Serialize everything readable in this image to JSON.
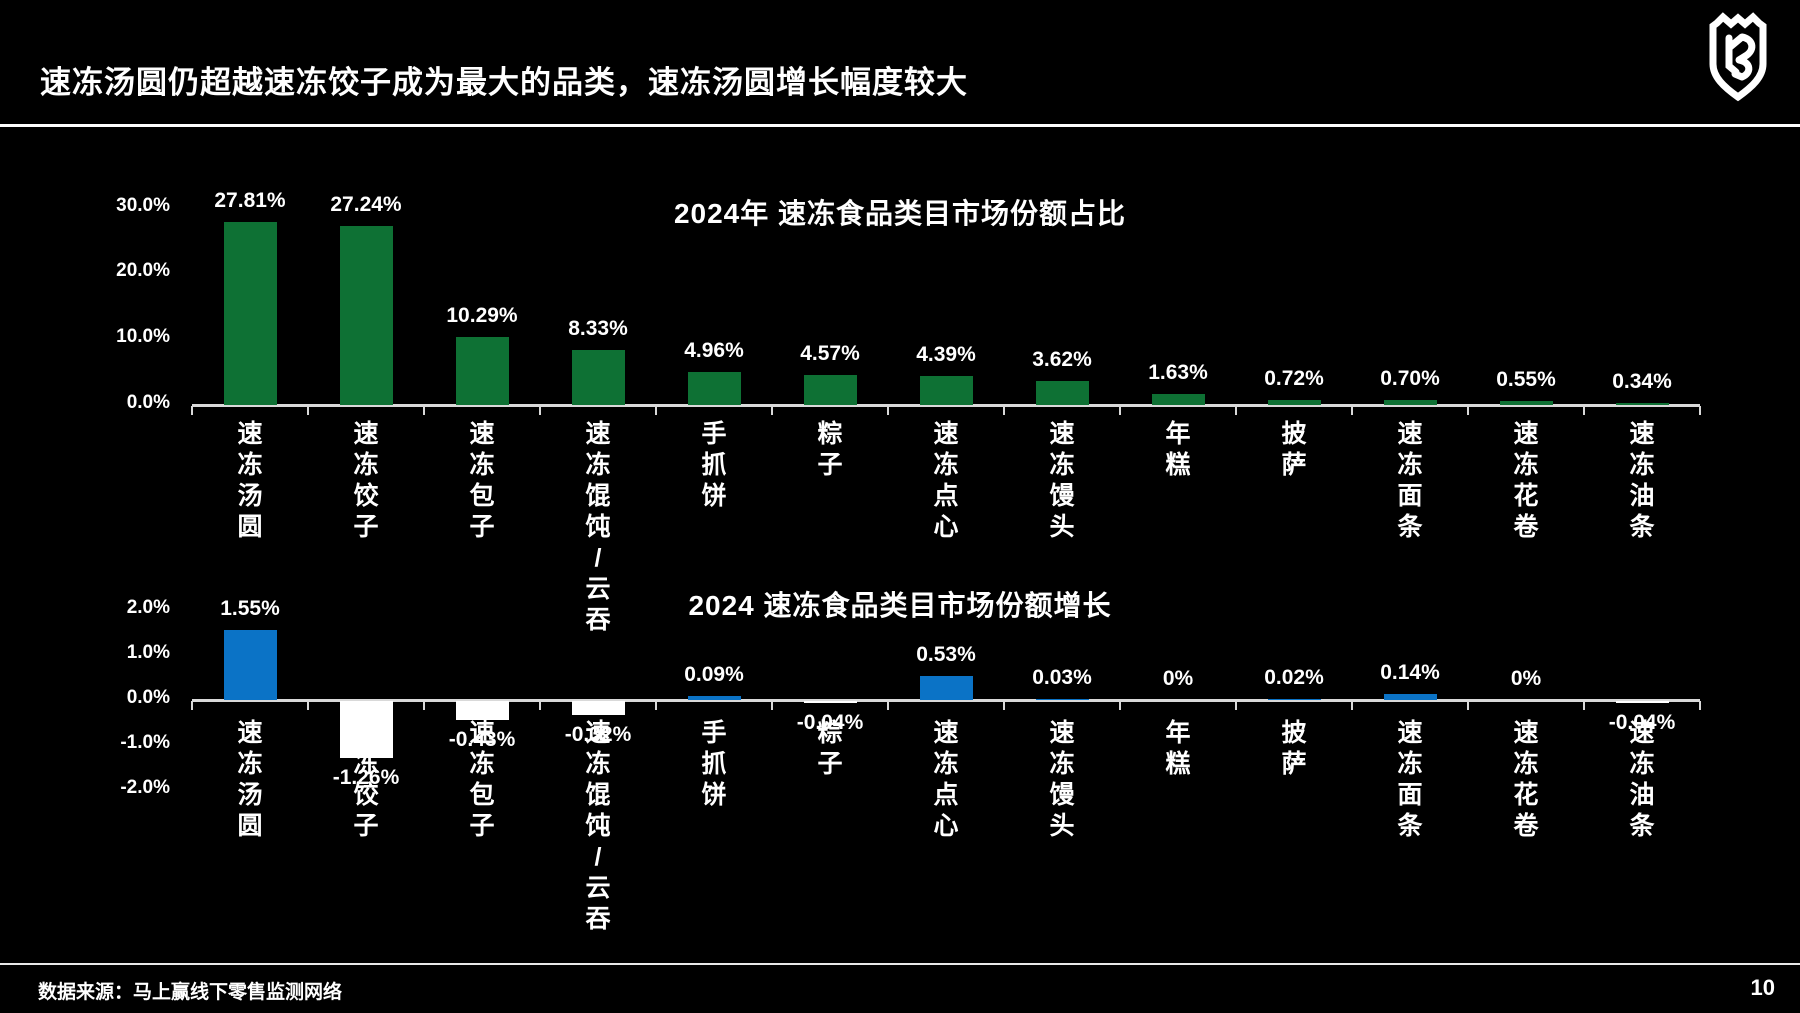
{
  "slide": {
    "title": "速冻汤圆仍超越速冻饺子成为最大的品类，速冻汤圆增长幅度较大",
    "logo_icon": "shield-crown-logo",
    "source": "数据来源：马上赢线下零售监测网络",
    "page_number": "10"
  },
  "colors": {
    "background": "#000000",
    "bar_green": "#0E7134",
    "bar_blue": "#0B73C6",
    "bar_white": "#FFFFFF",
    "axis": "#D9D9D9",
    "text": "#FFFFFF"
  },
  "chart_data": [
    {
      "type": "bar",
      "title": "2024年 速冻食品类目市场份额占比",
      "categories": [
        "速冻汤圆",
        "速冻饺子",
        "速冻包子",
        "速冻馄饨/云吞",
        "手抓饼",
        "粽子",
        "速冻点心",
        "速冻馒头",
        "年糕",
        "披萨",
        "速冻面条",
        "速冻花卷",
        "速冻油条"
      ],
      "values": [
        27.81,
        27.24,
        10.29,
        8.33,
        4.96,
        4.57,
        4.39,
        3.62,
        1.63,
        0.72,
        0.7,
        0.55,
        0.34
      ],
      "value_labels": [
        "27.81%",
        "27.24%",
        "10.29%",
        "8.33%",
        "4.96%",
        "4.57%",
        "4.39%",
        "3.62%",
        "1.63%",
        "0.72%",
        "0.70%",
        "0.55%",
        "0.34%"
      ],
      "bar_color": "#0E7134",
      "yticks": [
        {
          "label": "30.0%",
          "value": 30
        },
        {
          "label": "20.0%",
          "value": 20
        },
        {
          "label": "10.0%",
          "value": 10
        },
        {
          "label": "0.0%",
          "value": 0
        }
      ],
      "ylim": [
        0,
        33
      ],
      "xlabel": "",
      "ylabel": "",
      "grid": false,
      "legend": "none"
    },
    {
      "type": "bar",
      "title": "2024 速冻食品类目市场份额增长",
      "categories": [
        "速冻汤圆",
        "速冻饺子",
        "速冻包子",
        "速冻馄饨/云吞",
        "手抓饼",
        "粽子",
        "速冻点心",
        "速冻馒头",
        "年糕",
        "披萨",
        "速冻面条",
        "速冻花卷",
        "速冻油条"
      ],
      "values": [
        1.55,
        -1.26,
        -0.43,
        -0.32,
        0.09,
        -0.04,
        0.53,
        0.03,
        0,
        0.02,
        0.14,
        0,
        -0.04
      ],
      "value_labels": [
        "1.55%",
        "-1.26%",
        "-0.43%",
        "-0.32%",
        "0.09%",
        "-0.04%",
        "0.53%",
        "0.03%",
        "0%",
        "0.02%",
        "0.14%",
        "0%",
        "-0.04%"
      ],
      "positive_color": "#0B73C6",
      "negative_color": "#FFFFFF",
      "yticks": [
        {
          "label": "2.0%",
          "value": 2
        },
        {
          "label": "1.0%",
          "value": 1
        },
        {
          "label": "0.0%",
          "value": 0
        },
        {
          "label": "-1.0%",
          "value": -1
        },
        {
          "label": "-2.0%",
          "value": -2
        }
      ],
      "ylim": [
        -2.2,
        2.2
      ],
      "xlabel": "",
      "ylabel": "",
      "grid": false,
      "legend": "none"
    }
  ]
}
